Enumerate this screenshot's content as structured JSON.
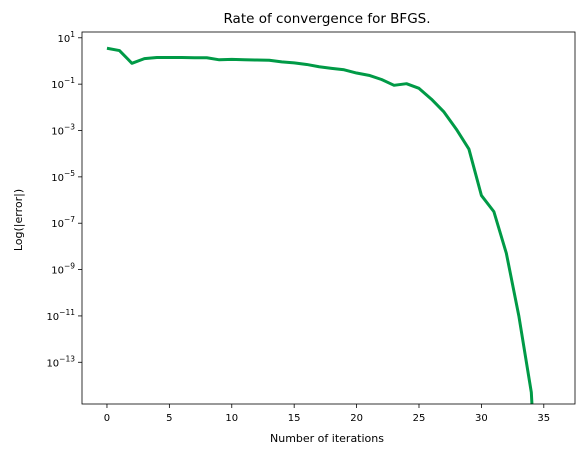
{
  "chart_data": {
    "type": "line",
    "title": "Rate of convergence for BFGS.",
    "xlabel": "Number of iterations",
    "ylabel": "Log(|error|)",
    "xlim": [
      -2,
      37.5
    ],
    "ylim_log10": [
      -14.8,
      1.25
    ],
    "yscale": "log",
    "grid": false,
    "x_ticks": [
      0,
      5,
      10,
      15,
      20,
      25,
      30,
      35
    ],
    "y_tick_exponents": [
      1,
      -1,
      -3,
      -5,
      -7,
      -9,
      -11,
      -13
    ],
    "y_tick_base": "10",
    "series": [
      {
        "color": "#009a46",
        "x": [
          0,
          1,
          2,
          3,
          4,
          5,
          6,
          7,
          8,
          9,
          10,
          11,
          12,
          13,
          14,
          15,
          16,
          17,
          18,
          19,
          20,
          21,
          22,
          23,
          24,
          25,
          26,
          27,
          28,
          29,
          30,
          31,
          32,
          33,
          34,
          34.05
        ],
        "y_log10": [
          0.55,
          0.45,
          -0.1,
          0.1,
          0.15,
          0.15,
          0.15,
          0.14,
          0.14,
          0.05,
          0.07,
          0.05,
          0.04,
          0.03,
          -0.04,
          -0.08,
          -0.15,
          -0.25,
          -0.32,
          -0.38,
          -0.52,
          -0.62,
          -0.8,
          -1.05,
          -0.98,
          -1.18,
          -1.65,
          -2.2,
          -2.95,
          -3.8,
          -5.8,
          -6.5,
          -8.3,
          -11.0,
          -14.3,
          -14.8
        ]
      }
    ]
  }
}
